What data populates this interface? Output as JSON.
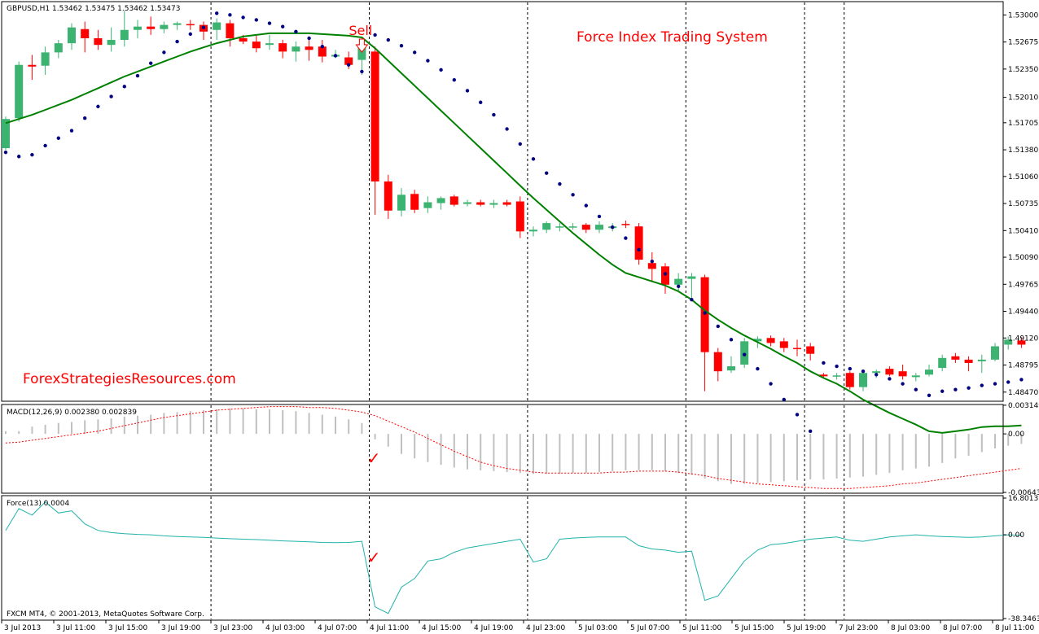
{
  "chart_data": [
    {
      "type": "candlestick",
      "title": "Force Index Trading System",
      "symbol_header": "GBPUSD,H1  1.53462 1.53475 1.53462 1.53473",
      "annotations": {
        "site": "ForexStrategiesResources.com",
        "signal": "Sell",
        "signal_index": 27
      },
      "ylim": [
        1.4837,
        1.5315
      ],
      "y_ticks": [
        "1.53000",
        "1.52675",
        "1.52350",
        "1.52010",
        "1.51705",
        "1.51380",
        "1.51060",
        "1.50735",
        "1.50410",
        "1.50090",
        "1.49765",
        "1.49440",
        "1.49120",
        "1.48795",
        "1.48470"
      ],
      "y_tick_values": [
        1.53,
        1.52675,
        1.5235,
        1.5201,
        1.51705,
        1.5138,
        1.5106,
        1.50735,
        1.5041,
        1.5009,
        1.49765,
        1.4944,
        1.4912,
        1.48795,
        1.4847
      ],
      "x_ticks": [
        "3 Jul 2013",
        "3 Jul 11:00",
        "3 Jul 15:00",
        "3 Jul 19:00",
        "3 Jul 23:00",
        "4 Jul 03:00",
        "4 Jul 07:00",
        "4 Jul 11:00",
        "4 Jul 15:00",
        "4 Jul 19:00",
        "4 Jul 23:00",
        "5 Jul 03:00",
        "5 Jul 07:00",
        "5 Jul 11:00",
        "5 Jul 15:00",
        "5 Jul 19:00",
        "7 Jul 23:00",
        "8 Jul 03:00",
        "8 Jul 07:00",
        "8 Jul 11:00"
      ],
      "separator_indices": [
        16,
        28,
        40,
        52,
        61,
        64
      ],
      "bull_color": "#3cb371",
      "bear_color": "#ff0000",
      "ohlc": [
        [
          1.514,
          1.5178,
          1.5138,
          1.5175
        ],
        [
          1.5176,
          1.5244,
          1.5172,
          1.524
        ],
        [
          1.524,
          1.5252,
          1.5222,
          1.5238
        ],
        [
          1.5239,
          1.5262,
          1.5228,
          1.5255
        ],
        [
          1.5255,
          1.527,
          1.5248,
          1.5266
        ],
        [
          1.5266,
          1.529,
          1.5258,
          1.5285
        ],
        [
          1.5283,
          1.5292,
          1.5255,
          1.5272
        ],
        [
          1.5272,
          1.5282,
          1.5258,
          1.5264
        ],
        [
          1.5264,
          1.5285,
          1.5256,
          1.527
        ],
        [
          1.527,
          1.5305,
          1.5262,
          1.5282
        ],
        [
          1.5282,
          1.5294,
          1.5272,
          1.5286
        ],
        [
          1.5286,
          1.5298,
          1.5276,
          1.5283
        ],
        [
          1.5283,
          1.5292,
          1.5278,
          1.5288
        ],
        [
          1.5288,
          1.5292,
          1.5282,
          1.529
        ],
        [
          1.5289,
          1.5294,
          1.5282,
          1.5288
        ],
        [
          1.5288,
          1.5292,
          1.527,
          1.528
        ],
        [
          1.5282,
          1.5296,
          1.527,
          1.5291
        ],
        [
          1.529,
          1.5294,
          1.5262,
          1.5272
        ],
        [
          1.5272,
          1.5276,
          1.5265,
          1.5268
        ],
        [
          1.5268,
          1.5275,
          1.5255,
          1.526
        ],
        [
          1.5264,
          1.5276,
          1.5258,
          1.5266
        ],
        [
          1.5266,
          1.527,
          1.5248,
          1.5256
        ],
        [
          1.5256,
          1.5268,
          1.5244,
          1.5262
        ],
        [
          1.5262,
          1.527,
          1.5245,
          1.5258
        ],
        [
          1.5262,
          1.527,
          1.5243,
          1.525
        ],
        [
          1.525,
          1.5258,
          1.5248,
          1.5252
        ],
        [
          1.5249,
          1.5256,
          1.5235,
          1.524
        ],
        [
          1.5246,
          1.527,
          1.5228,
          1.5265
        ],
        [
          1.5256,
          1.5262,
          1.506,
          1.51
        ],
        [
          1.51,
          1.5108,
          1.5055,
          1.5065
        ],
        [
          1.5065,
          1.5092,
          1.5058,
          1.5084
        ],
        [
          1.5085,
          1.509,
          1.5062,
          1.5066
        ],
        [
          1.5068,
          1.5082,
          1.5062,
          1.5075
        ],
        [
          1.5074,
          1.5082,
          1.5066,
          1.508
        ],
        [
          1.5082,
          1.5084,
          1.507,
          1.5072
        ],
        [
          1.5073,
          1.5078,
          1.507,
          1.5075
        ],
        [
          1.5075,
          1.5078,
          1.507,
          1.5072
        ],
        [
          1.5072,
          1.5078,
          1.5068,
          1.5074
        ],
        [
          1.5075,
          1.5078,
          1.507,
          1.5072
        ],
        [
          1.5076,
          1.5082,
          1.5032,
          1.504
        ],
        [
          1.504,
          1.5046,
          1.5034,
          1.5042
        ],
        [
          1.5042,
          1.5052,
          1.5038,
          1.505
        ],
        [
          1.5046,
          1.505,
          1.504,
          1.5046
        ],
        [
          1.5046,
          1.505,
          1.5042,
          1.5046
        ],
        [
          1.5048,
          1.505,
          1.5038,
          1.5042
        ],
        [
          1.5042,
          1.5052,
          1.5038,
          1.5048
        ],
        [
          1.5044,
          1.505,
          1.504,
          1.5046
        ],
        [
          1.5049,
          1.5053,
          1.5044,
          1.5048
        ],
        [
          1.5046,
          1.505,
          1.5,
          1.5006
        ],
        [
          1.5002,
          1.5015,
          1.498,
          1.4995
        ],
        [
          1.4998,
          1.5002,
          1.4965,
          1.4976
        ],
        [
          1.4976,
          1.499,
          1.4968,
          1.4983
        ],
        [
          1.4983,
          1.499,
          1.4958,
          1.4986
        ],
        [
          1.4985,
          1.4988,
          1.4848,
          1.4895
        ],
        [
          1.4895,
          1.49,
          1.486,
          1.4872
        ],
        [
          1.4873,
          1.489,
          1.487,
          1.4878
        ],
        [
          1.488,
          1.4912,
          1.4876,
          1.4908
        ],
        [
          1.4908,
          1.4914,
          1.49,
          1.4911
        ],
        [
          1.4912,
          1.4915,
          1.4902,
          1.4906
        ],
        [
          1.4908,
          1.4912,
          1.4895,
          1.49
        ],
        [
          1.49,
          1.491,
          1.489,
          1.4899
        ],
        [
          1.4902,
          1.4906,
          1.4885,
          1.4893
        ],
        [
          1.4868,
          1.487,
          1.4864,
          1.4866
        ],
        [
          1.4866,
          1.487,
          1.4862,
          1.4867
        ],
        [
          1.487,
          1.4872,
          1.485,
          1.4853
        ],
        [
          1.4853,
          1.4872,
          1.4848,
          1.487
        ],
        [
          1.487,
          1.4874,
          1.4864,
          1.4872
        ],
        [
          1.4875,
          1.4878,
          1.4866,
          1.4868
        ],
        [
          1.4872,
          1.488,
          1.4862,
          1.4866
        ],
        [
          1.4865,
          1.487,
          1.486,
          1.4867
        ],
        [
          1.4868,
          1.488,
          1.4866,
          1.4874
        ],
        [
          1.4876,
          1.4892,
          1.4872,
          1.4888
        ],
        [
          1.489,
          1.4894,
          1.4882,
          1.4886
        ],
        [
          1.4886,
          1.489,
          1.4872,
          1.4882
        ],
        [
          1.4884,
          1.4892,
          1.487,
          1.4886
        ],
        [
          1.4886,
          1.4906,
          1.4884,
          1.4902
        ],
        [
          1.4904,
          1.4914,
          1.4898,
          1.491
        ],
        [
          1.4909,
          1.4913,
          1.49,
          1.4904
        ]
      ],
      "sma": [
        1.517,
        1.5175,
        1.518,
        1.5186,
        1.5192,
        1.5198,
        1.5205,
        1.5212,
        1.5219,
        1.5226,
        1.5232,
        1.5238,
        1.5244,
        1.525,
        1.5256,
        1.5261,
        1.5266,
        1.527,
        1.5274,
        1.5276,
        1.5278,
        1.5278,
        1.5278,
        1.5278,
        1.5277,
        1.5276,
        1.5275,
        1.5273,
        1.526,
        1.5245,
        1.523,
        1.5215,
        1.52,
        1.5185,
        1.517,
        1.5155,
        1.514,
        1.5125,
        1.511,
        1.5095,
        1.508,
        1.5066,
        1.5052,
        1.5038,
        1.5025,
        1.5012,
        1.5,
        1.499,
        1.4985,
        1.498,
        1.4975,
        1.4968,
        1.4958,
        1.4945,
        1.4934,
        1.4924,
        1.4915,
        1.4907,
        1.4899,
        1.489,
        1.4882,
        1.4872,
        1.4864,
        1.4857,
        1.4848,
        1.4838,
        1.483,
        1.4822,
        1.4815,
        1.4808,
        1.48,
        1.4798,
        1.48,
        1.4802,
        1.4805,
        1.4806,
        1.4806,
        1.4807
      ],
      "sar": [
        1.5135,
        1.513,
        1.5132,
        1.5143,
        1.5152,
        1.5161,
        1.5176,
        1.519,
        1.5202,
        1.5214,
        1.5227,
        1.5242,
        1.5255,
        1.5268,
        1.5277,
        1.5285,
        1.5302,
        1.53,
        1.5297,
        1.5294,
        1.529,
        1.5286,
        1.528,
        1.5272,
        1.5262,
        1.5251,
        1.524,
        1.5232,
        1.5276,
        1.527,
        1.5263,
        1.5255,
        1.5245,
        1.5234,
        1.5222,
        1.5209,
        1.5195,
        1.518,
        1.5163,
        1.5145,
        1.5127,
        1.511,
        1.5097,
        1.5084,
        1.5071,
        1.5058,
        1.5045,
        1.5032,
        1.5018,
        1.5004,
        1.4989,
        1.4974,
        1.4958,
        1.4942,
        1.4926,
        1.491,
        1.4892,
        1.4875,
        1.4857,
        1.4838,
        1.482,
        1.48,
        1.4882,
        1.4878,
        1.4875,
        1.4872,
        1.4868,
        1.4863,
        1.4857,
        1.485,
        1.4843,
        1.4848,
        1.485,
        1.4852,
        1.4855,
        1.4857,
        1.4859,
        1.4862
      ]
    },
    {
      "type": "bar",
      "title": "MACD(12,26,9) 0.002380 0.002839",
      "ylim": [
        -0.00643,
        0.00314
      ],
      "y_ticks": [
        "0.003149",
        "0.00",
        "-0.006435"
      ],
      "y_tick_values": [
        0.003149,
        0.0,
        -0.006435
      ],
      "histogram": [
        0.0003,
        0.0003,
        0.0008,
        0.001,
        0.0012,
        0.0013,
        0.0015,
        0.0016,
        0.0017,
        0.0019,
        0.002,
        0.0021,
        0.0023,
        0.0024,
        0.0025,
        0.0026,
        0.0027,
        0.0028,
        0.0028,
        0.0027,
        0.0027,
        0.0026,
        0.0025,
        0.0023,
        0.0021,
        0.0019,
        0.0016,
        0.0012,
        -0.0006,
        -0.0014,
        -0.0022,
        -0.0027,
        -0.0031,
        -0.0034,
        -0.0037,
        -0.0039,
        -0.004,
        -0.0041,
        -0.0042,
        -0.0043,
        -0.0044,
        -0.0044,
        -0.0044,
        -0.0043,
        -0.0043,
        -0.0042,
        -0.0041,
        -0.004,
        -0.004,
        -0.004,
        -0.0041,
        -0.0043,
        -0.0045,
        -0.0049,
        -0.0052,
        -0.0055,
        -0.0055,
        -0.0054,
        -0.0053,
        -0.0052,
        -0.0051,
        -0.005,
        -0.005,
        -0.0049,
        -0.0048,
        -0.0047,
        -0.0045,
        -0.0043,
        -0.004,
        -0.0038,
        -0.0036,
        -0.0032,
        -0.0027,
        -0.0024,
        -0.002,
        -0.0016,
        -0.0013,
        -0.0011
      ],
      "signal": [
        -0.001,
        -0.0009,
        -0.0007,
        -0.0005,
        -0.0003,
        -0.0001,
        0.0001,
        0.0003,
        0.0006,
        0.0009,
        0.0012,
        0.0015,
        0.0018,
        0.002,
        0.0022,
        0.0024,
        0.0026,
        0.0027,
        0.0028,
        0.0029,
        0.003,
        0.003,
        0.003,
        0.0029,
        0.0029,
        0.0028,
        0.0026,
        0.0024,
        0.002,
        0.0014,
        0.0008,
        0.0002,
        -0.0005,
        -0.0012,
        -0.0019,
        -0.0025,
        -0.0031,
        -0.0035,
        -0.0038,
        -0.004,
        -0.0042,
        -0.0043,
        -0.0043,
        -0.0043,
        -0.0043,
        -0.0043,
        -0.0042,
        -0.0042,
        -0.0041,
        -0.0041,
        -0.0041,
        -0.0042,
        -0.0044,
        -0.0046,
        -0.0049,
        -0.0051,
        -0.0053,
        -0.0055,
        -0.0056,
        -0.0057,
        -0.0058,
        -0.0059,
        -0.006,
        -0.006,
        -0.006,
        -0.0059,
        -0.0058,
        -0.0057,
        -0.0055,
        -0.0054,
        -0.0052,
        -0.005,
        -0.0048,
        -0.0046,
        -0.0044,
        -0.0042,
        -0.004,
        -0.0038
      ],
      "check_index": 28,
      "hist_color": "#c0c0c0",
      "signal_color": "#ff0000"
    },
    {
      "type": "line",
      "title": "Force(13) 0.0004",
      "ylim": [
        -38.3463,
        16.8013
      ],
      "y_ticks": [
        "16.8013",
        "0.00",
        "-38.3463"
      ],
      "y_tick_values": [
        16.8013,
        0.0,
        -38.3463
      ],
      "values": [
        2.0,
        12.0,
        9.0,
        15.0,
        10.0,
        11.0,
        5.0,
        2.0,
        1.0,
        0.5,
        0.2,
        0.0,
        -0.5,
        -0.8,
        -1.0,
        -1.2,
        -1.5,
        -1.8,
        -2.0,
        -2.2,
        -2.5,
        -2.8,
        -3.0,
        -3.2,
        -3.5,
        -3.6,
        -3.5,
        -3.0,
        -33.0,
        -36.0,
        -24.0,
        -20.0,
        -12.0,
        -11.0,
        -8.0,
        -6.0,
        -5.0,
        -4.0,
        -3.0,
        -2.0,
        -12.5,
        -11.0,
        -2.0,
        -1.5,
        -1.2,
        -1.0,
        -1.0,
        -1.0,
        -5.0,
        -6.5,
        -7.0,
        -8.0,
        -7.5,
        -30.0,
        -28.0,
        -20.0,
        -12.0,
        -7.0,
        -4.5,
        -4.0,
        -3.0,
        -2.0,
        -1.5,
        -1.0,
        -2.5,
        -3.0,
        -2.0,
        -1.0,
        -0.5,
        0.0,
        -0.5,
        -0.8,
        -1.0,
        -1.2,
        -1.0,
        -0.5,
        0.0,
        -0.3
      ],
      "check_index": 28,
      "line_color": "#20b2aa"
    }
  ],
  "footer": {
    "copyright": "FXCM MT4, © 2001-2013, MetaQuotes Software Corp."
  }
}
